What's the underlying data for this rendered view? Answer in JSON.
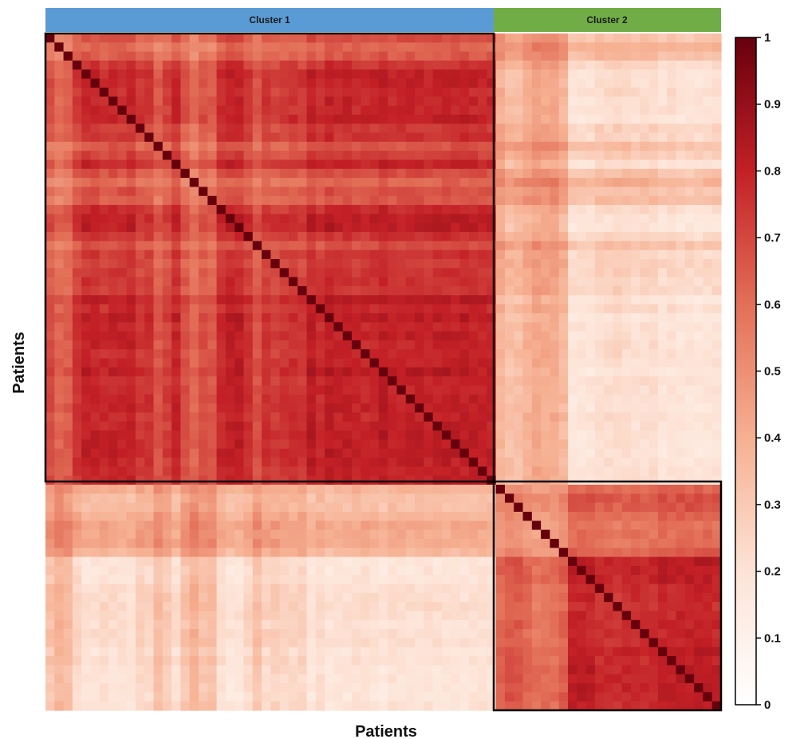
{
  "chart_data": {
    "type": "heatmap",
    "title": "",
    "xlabel": "Patients",
    "ylabel": "Patients",
    "n_patients": 75,
    "clusters": [
      {
        "name": "Cluster 1",
        "start": 0,
        "size": 50,
        "color": "#5b9bd5"
      },
      {
        "name": "Cluster 2",
        "start": 50,
        "size": 25,
        "color": "#70ad47"
      }
    ],
    "within_cluster_similarity": {
      "Cluster 1": 0.85,
      "Cluster 2": 0.83
    },
    "between_cluster_similarity": 0.15,
    "diagonal_value": 1,
    "colorbar": {
      "range": [
        0,
        1
      ],
      "ticks": [
        "0",
        "0.1",
        "0.2",
        "0.3",
        "0.4",
        "0.5",
        "0.6",
        "0.7",
        "0.8",
        "0.9",
        "1"
      ],
      "colors": [
        "#ffffff",
        "#fde3d6",
        "#f6b092",
        "#e36f58",
        "#c32026",
        "#67000d"
      ]
    },
    "grid": false,
    "legend": "right"
  }
}
